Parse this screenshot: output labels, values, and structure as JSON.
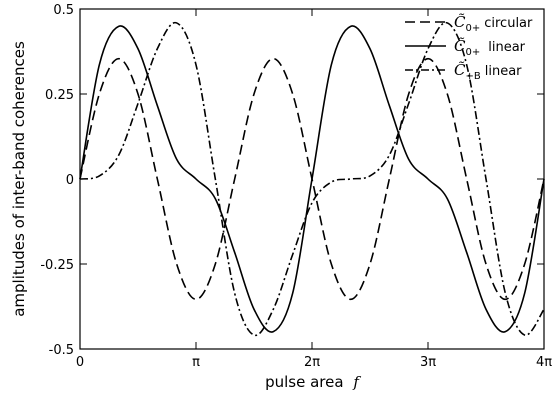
{
  "chart_data": {
    "type": "line",
    "title": "",
    "xlabel": "pulse area",
    "xlabel_symbol": "f",
    "ylabel": "amplitudes of inter-band coherences",
    "xlim": [
      0,
      12.566370614359172
    ],
    "ylim": [
      -0.5,
      0.5
    ],
    "x_ticks": [
      {
        "value": 0,
        "label": "0"
      },
      {
        "value": 3.141592653589793,
        "label": "π"
      },
      {
        "value": 6.283185307179586,
        "label": "2π"
      },
      {
        "value": 9.42477796076938,
        "label": "3π"
      },
      {
        "value": 12.566370614359172,
        "label": "4π"
      }
    ],
    "y_ticks": [
      {
        "value": 0.5,
        "label": "0.5"
      },
      {
        "value": 0.25,
        "label": "0.25"
      },
      {
        "value": 0,
        "label": "0"
      },
      {
        "value": -0.25,
        "label": "-0.25"
      },
      {
        "value": -0.5,
        "label": "-0.5"
      }
    ],
    "grid": false,
    "legend_position": "top-right",
    "x": [
      0,
      0.5236,
      1.0472,
      1.5708,
      2.0944,
      2.618,
      3.1416,
      3.6652,
      4.1888,
      4.7124,
      5.236,
      5.7596,
      6.2832,
      6.8068,
      7.3304,
      7.854,
      8.3776,
      8.9012,
      9.4248,
      9.9484,
      10.472,
      10.9956,
      11.5192,
      12.0428,
      12.5664
    ],
    "series": [
      {
        "name_symbol": "C̃",
        "name_sub": "0+",
        "name": "circular",
        "dash": "dashed",
        "values": [
          0,
          0.25,
          0.354,
          0.25,
          0,
          -0.25,
          -0.354,
          -0.25,
          0,
          0.25,
          0.354,
          0.25,
          0,
          -0.25,
          -0.354,
          -0.25,
          0,
          0.25,
          0.354,
          0.25,
          0,
          -0.25,
          -0.354,
          -0.25,
          0
        ]
      },
      {
        "name_symbol": "C̃",
        "name_sub": "0+",
        "name": "linear",
        "dash": "solid",
        "values": [
          0,
          0.336,
          0.449,
          0.383,
          0.216,
          0.058,
          0,
          -0.058,
          -0.216,
          -0.383,
          -0.449,
          -0.336,
          0,
          0.336,
          0.449,
          0.383,
          0.216,
          0.058,
          0,
          -0.058,
          -0.216,
          -0.383,
          -0.449,
          -0.336,
          0
        ]
      },
      {
        "name_symbol": "C̃",
        "name_sub": "+B",
        "name": "linear",
        "dash": "dashdot",
        "values": [
          0,
          0.009,
          0.07,
          0.222,
          0.383,
          0.459,
          0.336,
          0,
          -0.336,
          -0.459,
          -0.383,
          -0.222,
          -0.07,
          -0.009,
          0,
          0.009,
          0.07,
          0.222,
          0.383,
          0.459,
          0.336,
          0,
          -0.336,
          -0.459,
          -0.383
        ]
      }
    ]
  }
}
